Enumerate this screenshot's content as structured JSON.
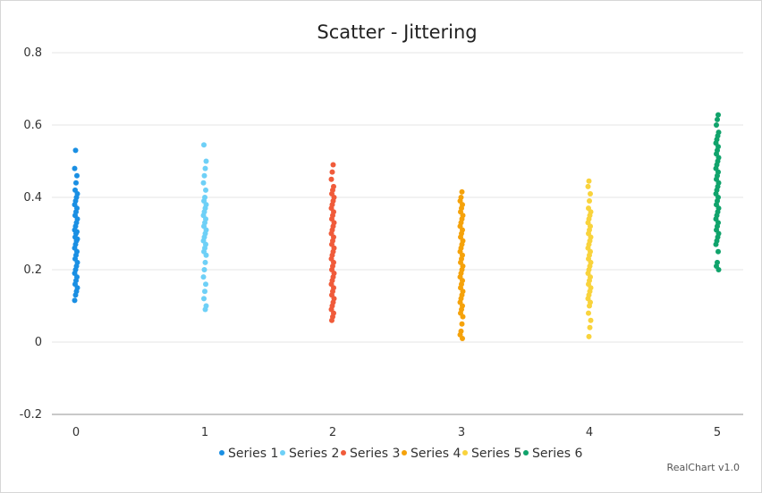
{
  "chart_data": {
    "type": "scatter",
    "title": "Scatter - Jittering",
    "xlabel": "",
    "ylabel": "",
    "xlim": [
      0,
      5
    ],
    "ylim": [
      -0.2,
      0.8
    ],
    "x_ticks": [
      "0",
      "1",
      "2",
      "3",
      "4",
      "5"
    ],
    "y_ticks": [
      "0.8",
      "0.6",
      "0.4",
      "0.2",
      "0",
      "-0.2"
    ],
    "grid": true,
    "legend_position": "bottom",
    "series": [
      {
        "name": "Series 1",
        "x": 0,
        "color": "#1a8fe3",
        "values": [
          0.115,
          0.13,
          0.14,
          0.15,
          0.16,
          0.17,
          0.18,
          0.19,
          0.2,
          0.21,
          0.22,
          0.23,
          0.24,
          0.25,
          0.26,
          0.27,
          0.28,
          0.285,
          0.29,
          0.3,
          0.305,
          0.31,
          0.32,
          0.33,
          0.34,
          0.35,
          0.36,
          0.37,
          0.38,
          0.39,
          0.4,
          0.41,
          0.42,
          0.44,
          0.46,
          0.48,
          0.53
        ]
      },
      {
        "name": "Series 2",
        "x": 1,
        "color": "#6ed0f7",
        "values": [
          0.09,
          0.1,
          0.12,
          0.14,
          0.16,
          0.18,
          0.2,
          0.22,
          0.24,
          0.25,
          0.26,
          0.27,
          0.28,
          0.29,
          0.3,
          0.31,
          0.32,
          0.33,
          0.34,
          0.35,
          0.36,
          0.37,
          0.38,
          0.39,
          0.4,
          0.42,
          0.44,
          0.46,
          0.48,
          0.5,
          0.545
        ]
      },
      {
        "name": "Series 3",
        "x": 2,
        "color": "#f05b3a",
        "values": [
          0.06,
          0.07,
          0.08,
          0.09,
          0.1,
          0.11,
          0.12,
          0.13,
          0.14,
          0.15,
          0.16,
          0.17,
          0.18,
          0.19,
          0.2,
          0.21,
          0.22,
          0.23,
          0.24,
          0.25,
          0.26,
          0.27,
          0.28,
          0.29,
          0.3,
          0.31,
          0.32,
          0.33,
          0.34,
          0.35,
          0.36,
          0.37,
          0.38,
          0.39,
          0.4,
          0.41,
          0.42,
          0.43,
          0.45,
          0.47,
          0.49
        ]
      },
      {
        "name": "Series 4",
        "x": 3,
        "color": "#f5a20a",
        "values": [
          0.01,
          0.02,
          0.03,
          0.05,
          0.07,
          0.08,
          0.09,
          0.1,
          0.11,
          0.12,
          0.13,
          0.14,
          0.15,
          0.16,
          0.17,
          0.18,
          0.19,
          0.2,
          0.21,
          0.22,
          0.23,
          0.24,
          0.25,
          0.26,
          0.27,
          0.28,
          0.29,
          0.3,
          0.31,
          0.32,
          0.33,
          0.34,
          0.35,
          0.36,
          0.37,
          0.38,
          0.39,
          0.4,
          0.415
        ]
      },
      {
        "name": "Series 5",
        "x": 4,
        "color": "#f9d33c",
        "values": [
          0.015,
          0.04,
          0.06,
          0.08,
          0.1,
          0.11,
          0.12,
          0.13,
          0.14,
          0.15,
          0.16,
          0.17,
          0.18,
          0.19,
          0.2,
          0.21,
          0.22,
          0.23,
          0.24,
          0.25,
          0.26,
          0.27,
          0.28,
          0.29,
          0.3,
          0.31,
          0.32,
          0.33,
          0.34,
          0.35,
          0.36,
          0.37,
          0.39,
          0.41,
          0.43,
          0.445
        ]
      },
      {
        "name": "Series 6",
        "x": 5,
        "color": "#10a36b",
        "values": [
          0.2,
          0.21,
          0.22,
          0.25,
          0.27,
          0.28,
          0.29,
          0.3,
          0.31,
          0.32,
          0.33,
          0.34,
          0.35,
          0.36,
          0.37,
          0.38,
          0.39,
          0.4,
          0.41,
          0.42,
          0.43,
          0.44,
          0.45,
          0.46,
          0.47,
          0.48,
          0.49,
          0.5,
          0.51,
          0.52,
          0.53,
          0.54,
          0.55,
          0.56,
          0.57,
          0.58,
          0.6,
          0.615,
          0.628
        ]
      }
    ],
    "credits": "RealChart v1.0"
  }
}
